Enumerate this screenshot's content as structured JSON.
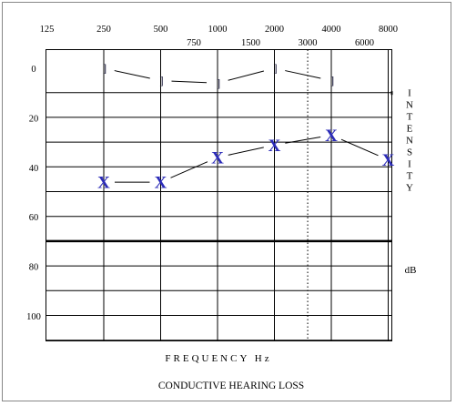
{
  "chart_data": {
    "type": "line",
    "title": "CONDUCTIVE HEARING LOSS",
    "xlabel": "FREQUENCY Hz",
    "ylabel": "INTENSITY",
    "ylabel_unit": "dB",
    "x_scale": "log",
    "ylim": [
      0,
      110
    ],
    "y_inverted": true,
    "grid": true,
    "octave_ticks": [
      "125",
      "250",
      "500",
      "1000",
      "2000",
      "4000",
      "8000"
    ],
    "interoctave_ticks": [
      "750",
      "1500",
      "3000",
      "6000"
    ],
    "y_ticks": [
      "0",
      "20",
      "40",
      "60",
      "80",
      "100"
    ],
    "series": [
      {
        "symbol": "]",
        "x": [
          250,
          500,
          1000,
          2000,
          4000
        ],
        "y": [
          0,
          5,
          6,
          0,
          5
        ]
      },
      {
        "symbol": "X",
        "x": [
          250,
          500,
          1000,
          2000,
          4000,
          8000
        ],
        "y": [
          46,
          46,
          36,
          31,
          27,
          37
        ]
      }
    ],
    "reference_line_db": 70,
    "dotted_line_hz": 3000
  }
}
